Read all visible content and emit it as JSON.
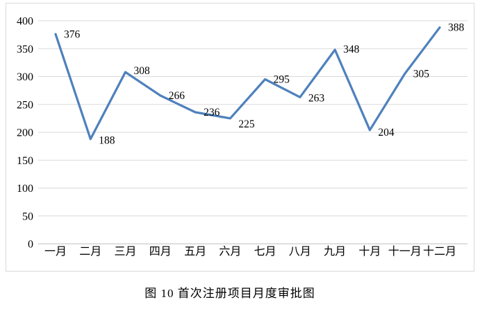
{
  "chart_data": {
    "type": "line",
    "categories": [
      "一月",
      "二月",
      "三月",
      "四月",
      "五月",
      "六月",
      "七月",
      "八月",
      "九月",
      "十月",
      "十一月",
      "十二月"
    ],
    "values": [
      376,
      188,
      308,
      266,
      236,
      225,
      295,
      263,
      348,
      204,
      305,
      388
    ],
    "title": "图 10 首次注册项目月度审批图",
    "title_position": "bottom",
    "xlabel": "",
    "ylabel": "",
    "ylim": [
      0,
      400
    ],
    "ytick_step": 50,
    "yticks": [
      0,
      50,
      100,
      150,
      200,
      250,
      300,
      350,
      400
    ],
    "grid": "horizontal",
    "legend": "none",
    "data_labels": true,
    "colors": {
      "line": "#4F81BD",
      "grid": "#d9d9d9",
      "axis": "#bfbfbf",
      "text": "#000000",
      "border": "#d9d9d9",
      "background": "#ffffff"
    }
  }
}
